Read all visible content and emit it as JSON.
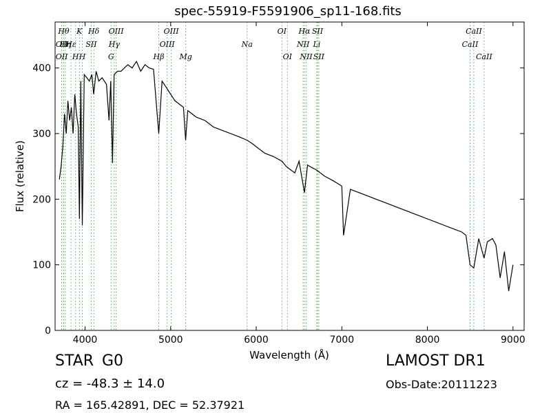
{
  "chart_data": {
    "type": "line",
    "title": "spec-55919-F5591906_sp11-168.fits",
    "xlabel": "Wavelength (Å)",
    "ylabel": "Flux (relative)",
    "xlim": [
      3650,
      9130
    ],
    "ylim": [
      0,
      470
    ],
    "xticks": [
      4000,
      5000,
      6000,
      7000,
      8000,
      9000
    ],
    "yticks": [
      0,
      100,
      200,
      300,
      400
    ],
    "grid": false,
    "series": [
      {
        "color": "#000000",
        "x": [
          3700,
          3720,
          3740,
          3760,
          3780,
          3800,
          3820,
          3840,
          3860,
          3880,
          3900,
          3920,
          3934,
          3950,
          3968,
          3990,
          4020,
          4050,
          4080,
          4101,
          4130,
          4160,
          4200,
          4250,
          4280,
          4300,
          4320,
          4340,
          4380,
          4420,
          4460,
          4500,
          4550,
          4600,
          4650,
          4700,
          4750,
          4800,
          4861,
          4900,
          4950,
          5000,
          5050,
          5100,
          5150,
          5175,
          5200,
          5250,
          5300,
          5400,
          5500,
          5600,
          5700,
          5800,
          5893,
          5950,
          6000,
          6100,
          6200,
          6300,
          6350,
          6400,
          6450,
          6500,
          6563,
          6600,
          6650,
          6700,
          6800,
          6900,
          7000,
          7020,
          7100,
          7200,
          7300,
          7400,
          7500,
          7600,
          7700,
          7800,
          7900,
          8000,
          8100,
          8200,
          8300,
          8400,
          8450,
          8498,
          8542,
          8600,
          8662,
          8700,
          8760,
          8800,
          8850,
          8900,
          8950,
          9000
        ],
        "values": [
          230,
          250,
          280,
          330,
          300,
          350,
          320,
          340,
          300,
          360,
          330,
          310,
          170,
          380,
          160,
          390,
          385,
          380,
          390,
          360,
          395,
          380,
          385,
          375,
          320,
          380,
          255,
          390,
          395,
          395,
          400,
          405,
          400,
          410,
          395,
          405,
          400,
          398,
          300,
          380,
          370,
          360,
          350,
          345,
          340,
          290,
          335,
          330,
          325,
          320,
          310,
          305,
          300,
          295,
          290,
          285,
          280,
          270,
          265,
          258,
          250,
          245,
          240,
          258,
          210,
          252,
          248,
          245,
          235,
          228,
          220,
          145,
          215,
          210,
          205,
          200,
          195,
          190,
          185,
          180,
          175,
          170,
          165,
          160,
          155,
          150,
          145,
          100,
          95,
          140,
          110,
          135,
          140,
          130,
          80,
          120,
          60,
          100
        ]
      }
    ],
    "lines": [
      {
        "x": 3727,
        "label": "OII",
        "row": 1
      },
      {
        "x": 3727,
        "label": "OII",
        "row": 2
      },
      {
        "x": 3750,
        "label": "Hθ",
        "row": 0
      },
      {
        "x": 3770,
        "label": "Hη",
        "row": 1
      },
      {
        "x": 3835,
        "label": "Hε",
        "row": 1
      },
      {
        "x": 3889,
        "label": "H",
        "row": 2
      },
      {
        "x": 3934,
        "label": "K",
        "row": 0
      },
      {
        "x": 3968,
        "label": "H",
        "row": 2
      },
      {
        "x": 4072,
        "label": "SII",
        "row": 1
      },
      {
        "x": 4102,
        "label": "Hδ",
        "row": 0
      },
      {
        "x": 4304,
        "label": "G",
        "row": 2
      },
      {
        "x": 4341,
        "label": "Hγ",
        "row": 1
      },
      {
        "x": 4363,
        "label": "OIII",
        "row": 0
      },
      {
        "x": 4861,
        "label": "Hβ",
        "row": 2
      },
      {
        "x": 4959,
        "label": "OIII",
        "row": 1
      },
      {
        "x": 5007,
        "label": "OIII",
        "row": 0
      },
      {
        "x": 5176,
        "label": "Mg",
        "row": 2
      },
      {
        "x": 5893,
        "label": "Na",
        "row": 1
      },
      {
        "x": 6300,
        "label": "OI",
        "row": 0
      },
      {
        "x": 6364,
        "label": "OI",
        "row": 2
      },
      {
        "x": 6548,
        "label": "NII",
        "row": 1
      },
      {
        "x": 6563,
        "label": "Hα",
        "row": 0
      },
      {
        "x": 6583,
        "label": "NII",
        "row": 2
      },
      {
        "x": 6716,
        "label": "SII",
        "row": 0
      },
      {
        "x": 6707,
        "label": "Li",
        "row": 1
      },
      {
        "x": 6731,
        "label": "SII",
        "row": 2
      },
      {
        "x": 8498,
        "label": "CaII",
        "row": 1
      },
      {
        "x": 8542,
        "label": "CaII",
        "row": 0
      },
      {
        "x": 8662,
        "label": "CaII",
        "row": 2
      }
    ],
    "colors": {
      "spectrum": "#000000",
      "line_markers": "#4caf50"
    }
  },
  "info": {
    "class": "STAR",
    "subclass": "G0",
    "survey": "LAMOST DR1",
    "cz": "cz = -48.3 ± 14.0",
    "obs_date": "Obs-Date:20111223",
    "radec": "RA = 165.42891, DEC = 52.37921"
  }
}
